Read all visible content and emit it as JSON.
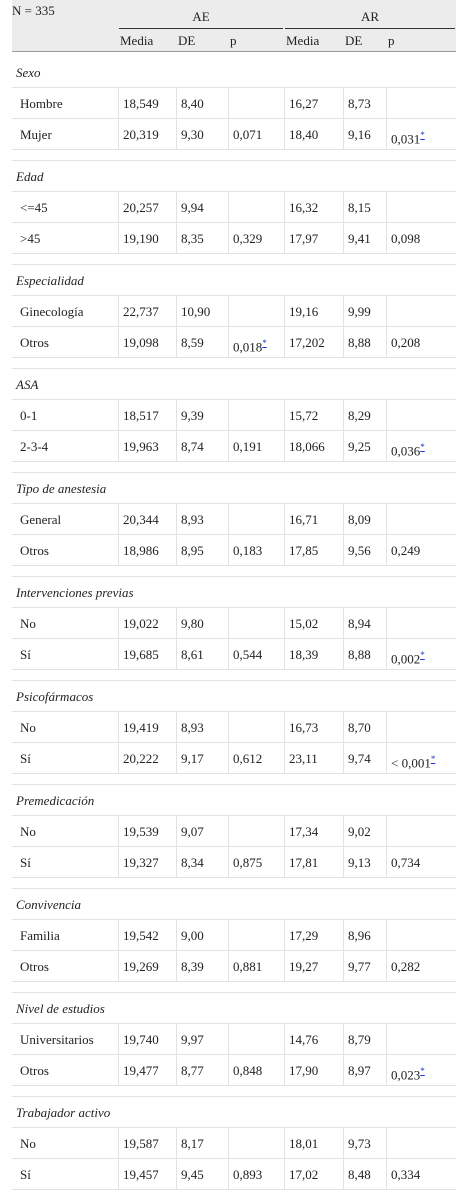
{
  "header": {
    "n": "N = 335",
    "groups": [
      "AE",
      "AR"
    ],
    "columns": [
      "Media",
      "DE",
      "p",
      "Media",
      "DE",
      "p"
    ]
  },
  "sections": [
    {
      "label": "Sexo",
      "rows": [
        {
          "label": "Hombre",
          "cells": [
            "18,549",
            "8,40",
            null,
            "16,27",
            "8,73",
            null
          ]
        },
        {
          "label": "Mujer",
          "cells": [
            "20,319",
            "9,30",
            "0,071",
            "18,40",
            "9,16",
            {
              "text": "0,031",
              "note": "*"
            }
          ]
        }
      ]
    },
    {
      "label": "Edad",
      "rows": [
        {
          "label": "<=45",
          "cells": [
            "20,257",
            "9,94",
            null,
            "16,32",
            "8,15",
            null
          ]
        },
        {
          "label": ">45",
          "cells": [
            "19,190",
            "8,35",
            "0,329",
            "17,97",
            "9,41",
            "0,098"
          ]
        }
      ]
    },
    {
      "label": "Especialidad",
      "rows": [
        {
          "label": "Ginecología",
          "cells": [
            "22,737",
            "10,90",
            null,
            "19,16",
            "9,99",
            null
          ]
        },
        {
          "label": "Otros",
          "cells": [
            "19,098",
            "8,59",
            {
              "text": "0,018",
              "note": "*"
            },
            "17,202",
            "8,88",
            "0,208"
          ]
        }
      ]
    },
    {
      "label": "ASA",
      "rows": [
        {
          "label": "0-1",
          "cells": [
            "18,517",
            "9,39",
            null,
            "15,72",
            "8,29",
            null
          ]
        },
        {
          "label": "2-3-4",
          "cells": [
            "19,963",
            "8,74",
            "0,191",
            "18,066",
            "9,25",
            {
              "text": "0,036",
              "note": "*"
            }
          ]
        }
      ]
    },
    {
      "label": "Tipo de anestesia",
      "rows": [
        {
          "label": "General",
          "cells": [
            "20,344",
            "8,93",
            null,
            "16,71",
            "8,09",
            null
          ]
        },
        {
          "label": "Otros",
          "cells": [
            "18,986",
            "8,95",
            "0,183",
            "17,85",
            "9,56",
            "0,249"
          ]
        }
      ]
    },
    {
      "label": "Intervenciones previas",
      "rows": [
        {
          "label": "No",
          "cells": [
            "19,022",
            "9,80",
            null,
            "15,02",
            "8,94",
            null
          ]
        },
        {
          "label": "Sí",
          "cells": [
            "19,685",
            "8,61",
            "0,544",
            "18,39",
            "8,88",
            {
              "text": "0,002",
              "note": "*"
            }
          ]
        }
      ]
    },
    {
      "label": "Psicofármacos",
      "rows": [
        {
          "label": "No",
          "cells": [
            "19,419",
            "8,93",
            null,
            "16,73",
            "8,70",
            null
          ]
        },
        {
          "label": "Sí",
          "cells": [
            "20,222",
            "9,17",
            "0,612",
            "23,11",
            "9,74",
            {
              "text": "< 0,001",
              "note": "*"
            }
          ]
        }
      ]
    },
    {
      "label": "Premedicación",
      "rows": [
        {
          "label": "No",
          "cells": [
            "19,539",
            "9,07",
            null,
            "17,34",
            "9,02",
            null
          ]
        },
        {
          "label": "Sí",
          "cells": [
            "19,327",
            "8,34",
            "0,875",
            "17,81",
            "9,13",
            "0,734"
          ]
        }
      ]
    },
    {
      "label": "Convivencia",
      "rows": [
        {
          "label": "Familia",
          "cells": [
            "19,542",
            "9,00",
            null,
            "17,29",
            "8,96",
            null
          ]
        },
        {
          "label": "Otros",
          "cells": [
            "19,269",
            "8,39",
            "0,881",
            "19,27",
            "9,77",
            "0,282"
          ]
        }
      ]
    },
    {
      "label": "Nivel de estudios",
      "rows": [
        {
          "label": "Universitarios",
          "cells": [
            "19,740",
            "9,97",
            null,
            "14,76",
            "8,79",
            null
          ]
        },
        {
          "label": "Otros",
          "cells": [
            "19,477",
            "8,77",
            "0,848",
            "17,90",
            "8,97",
            {
              "text": "0,023",
              "note": "*"
            }
          ]
        }
      ]
    },
    {
      "label": "Trabajador activo",
      "rows": [
        {
          "label": "No",
          "cells": [
            "19,587",
            "8,17",
            null,
            "18,01",
            "9,73",
            null
          ]
        },
        {
          "label": "Sí",
          "cells": [
            "19,457",
            "9,45",
            "0,893",
            "17,02",
            "8,48",
            "0,334"
          ]
        }
      ]
    }
  ]
}
